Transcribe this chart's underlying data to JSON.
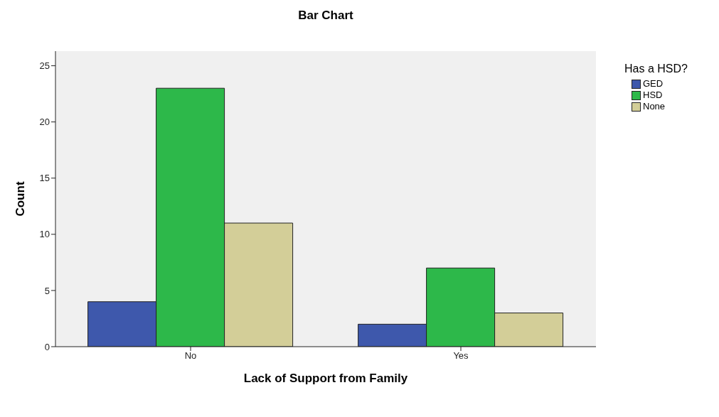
{
  "chart_data": {
    "type": "bar",
    "title": "Bar Chart",
    "xlabel": "Lack of Support from Family",
    "ylabel": "Count",
    "legend_title": "Has a HSD?",
    "categories": [
      "No",
      "Yes"
    ],
    "series": [
      {
        "name": "GED",
        "color": "#3e58ac",
        "values": [
          4,
          2
        ]
      },
      {
        "name": "HSD",
        "color": "#2db84a",
        "values": [
          23,
          7
        ]
      },
      {
        "name": "None",
        "color": "#d3ce98",
        "values": [
          11,
          3
        ]
      }
    ],
    "ylim": [
      0,
      26.3
    ],
    "yticks": [
      0,
      5,
      10,
      15,
      20,
      25
    ],
    "grid": false,
    "legend": "top right"
  }
}
